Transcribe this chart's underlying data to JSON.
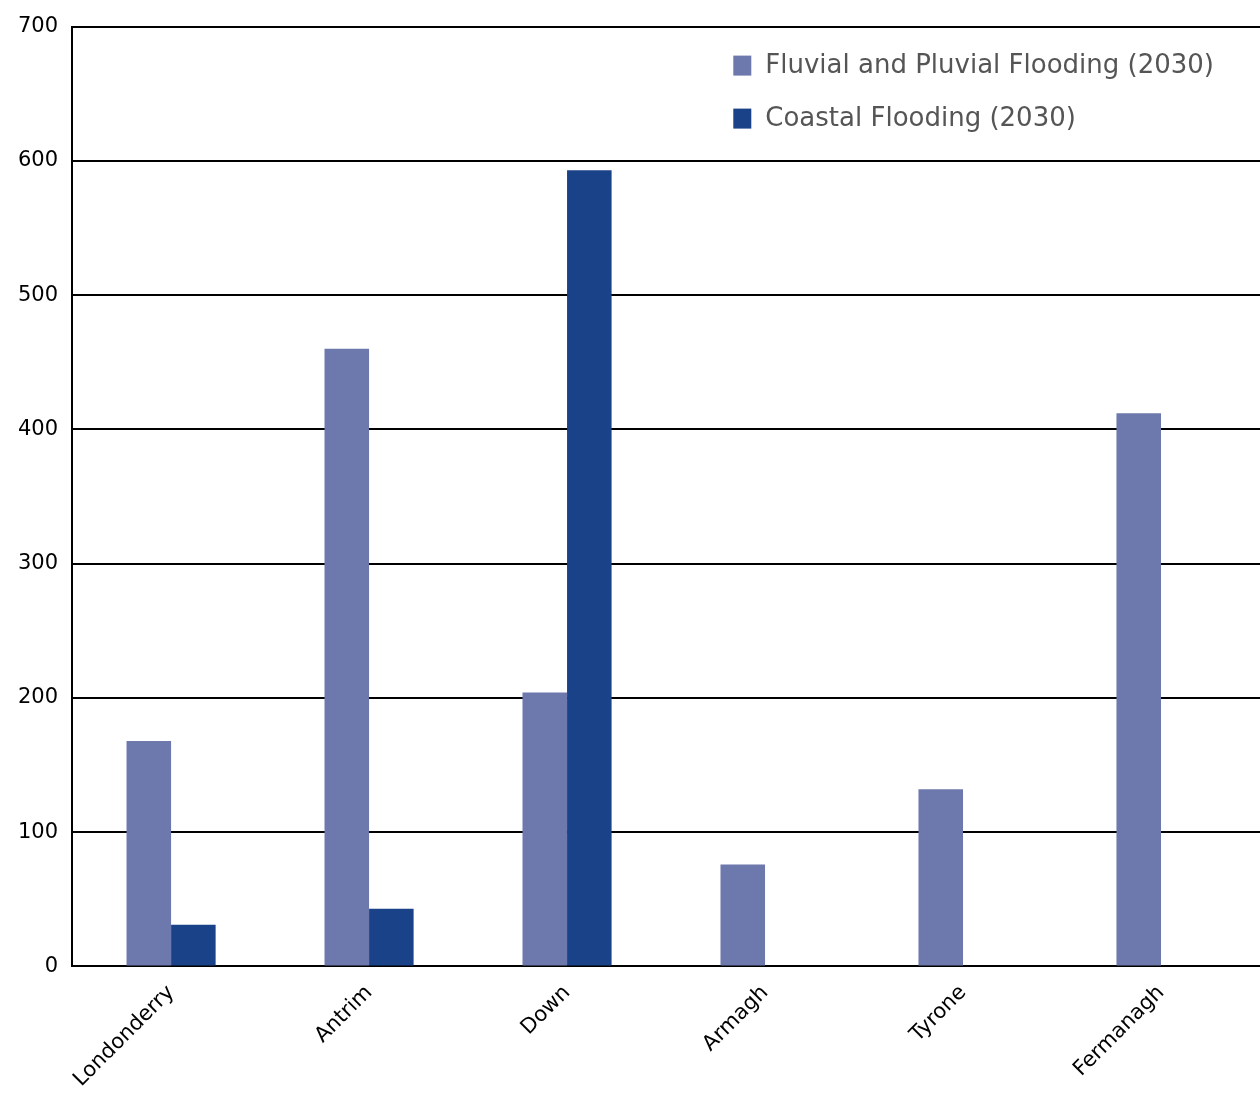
{
  "chart_data": {
    "type": "bar",
    "categories": [
      "Londonderry",
      "Antrim",
      "Down",
      "Armagh",
      "Tyrone",
      "Fermanagh"
    ],
    "series": [
      {
        "name": "Fluvial and Pluvial Flooding (2030)",
        "color": "#6d79ad",
        "values": [
          168,
          460,
          204,
          76,
          132,
          412
        ]
      },
      {
        "name": "Coastal Flooding (2030)",
        "color": "#1a4289",
        "values": [
          31,
          43,
          593,
          0,
          0,
          0
        ]
      }
    ],
    "ylim": [
      0,
      700
    ],
    "yticks": [
      0,
      100,
      200,
      300,
      400,
      500,
      600,
      700
    ],
    "grid": "y",
    "legend": "top right"
  }
}
